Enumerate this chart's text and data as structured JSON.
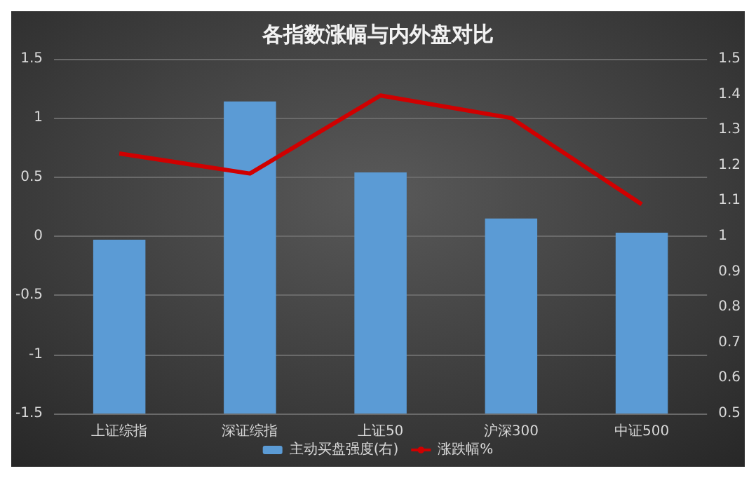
{
  "chart_data": {
    "type": "bar",
    "title": "各指数涨幅与内外盘对比",
    "categories": [
      "上证综指",
      "深证综指",
      "上证50",
      "沪深300",
      "中证500"
    ],
    "series": [
      {
        "name": "主动买盘强度(右)",
        "axis": "y2",
        "color": "#5b9bd5",
        "values": [
          0.99,
          1.38,
          1.18,
          1.05,
          1.01
        ]
      },
      {
        "name": "涨跌幅%",
        "type": "line",
        "color": "#d00000",
        "values": [
          0.7,
          0.53,
          1.19,
          1.0,
          0.27
        ]
      }
    ],
    "ylim": [
      -1.5,
      1.5
    ],
    "yticks": [
      -1.5,
      -1,
      -0.5,
      0,
      0.5,
      1,
      1.5
    ],
    "y2lim": [
      0.5,
      1.5
    ],
    "y2ticks": [
      0.5,
      0.6,
      0.7,
      0.8,
      0.9,
      1,
      1.1,
      1.2,
      1.3,
      1.4,
      1.5
    ],
    "grid": "y",
    "legend": "bottom",
    "marker": "none",
    "line_style": "solid"
  }
}
